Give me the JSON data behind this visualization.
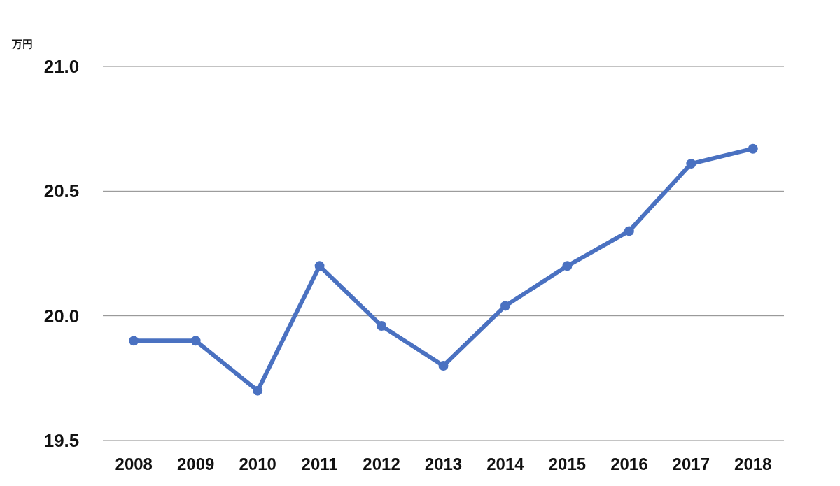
{
  "chart_data": {
    "type": "line",
    "ylabel": "万円",
    "categories": [
      "2008",
      "2009",
      "2010",
      "2011",
      "2012",
      "2013",
      "2014",
      "2015",
      "2016",
      "2017",
      "2018"
    ],
    "values": [
      19.9,
      19.9,
      19.7,
      20.2,
      19.96,
      19.8,
      20.04,
      20.2,
      20.34,
      20.61,
      20.67
    ],
    "color": "#4a71c1",
    "ylim": [
      19.5,
      21.0
    ],
    "yticks": [
      {
        "value": 19.5,
        "label": "19.5"
      },
      {
        "value": 20.0,
        "label": "20.0"
      },
      {
        "value": 20.5,
        "label": "20.5"
      },
      {
        "value": 21.0,
        "label": "21.0"
      }
    ],
    "grid": "y",
    "marker": "circle"
  }
}
